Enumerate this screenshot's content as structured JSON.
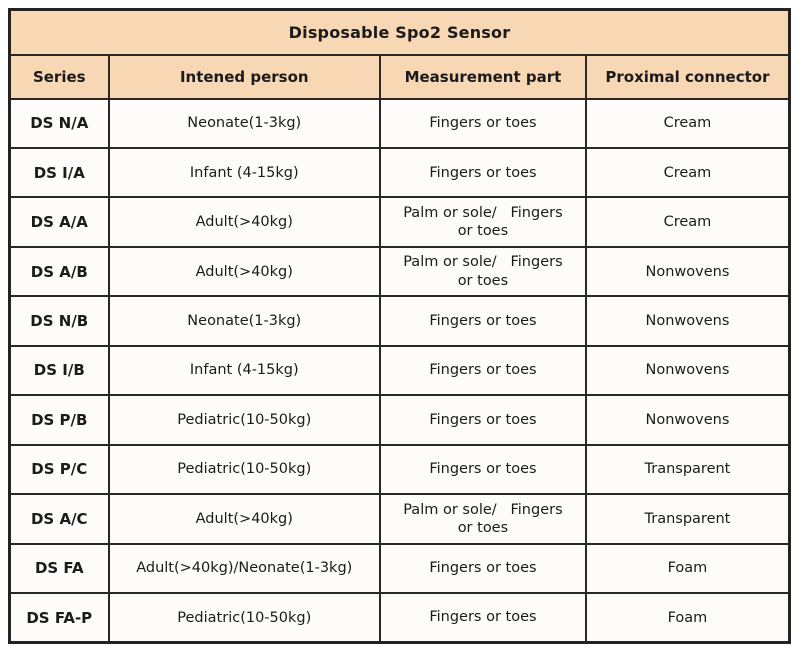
{
  "table": {
    "title": "Disposable Spo2 Sensor",
    "columns": [
      "Series",
      "Intened person",
      "Measurement part",
      "Proximal connector"
    ],
    "rows": [
      {
        "series": "DS N/A",
        "person": "Neonate(1-3kg)",
        "part": "Fingers or toes",
        "connector": "Cream"
      },
      {
        "series": "DS I/A",
        "person": "Infant (4-15kg)",
        "part": "Fingers or toes",
        "connector": "Cream"
      },
      {
        "series": "DS A/A",
        "person": "Adult(>40kg)",
        "part": "Palm or sole/   Fingers\nor toes",
        "connector": "Cream"
      },
      {
        "series": "DS A/B",
        "person": "Adult(>40kg)",
        "part": "Palm or sole/   Fingers\nor toes",
        "connector": "Nonwovens"
      },
      {
        "series": "DS N/B",
        "person": "Neonate(1-3kg)",
        "part": "Fingers or toes",
        "connector": "Nonwovens"
      },
      {
        "series": "DS I/B",
        "person": "Infant (4-15kg)",
        "part": "Fingers or toes",
        "connector": "Nonwovens"
      },
      {
        "series": "DS P/B",
        "person": "Pediatric(10-50kg)",
        "part": "Fingers or toes",
        "connector": "Nonwovens"
      },
      {
        "series": "DS P/C",
        "person": "Pediatric(10-50kg)",
        "part": "Fingers or toes",
        "connector": "Transparent"
      },
      {
        "series": "DS A/C",
        "person": "Adult(>40kg)",
        "part": "Palm or sole/   Fingers\nor toes",
        "connector": "Transparent"
      },
      {
        "series": "DS FA",
        "person": "Adult(>40kg)/Neonate(1-3kg)",
        "part": "Fingers or toes",
        "connector": "Foam"
      },
      {
        "series": "DS FA-P",
        "person": "Pediatric(10-50kg)",
        "part": "Fingers or toes",
        "connector": "Foam"
      }
    ],
    "colors": {
      "header_bg": "#f8d7b4",
      "border": "#2b2724",
      "cell_bg": "#fdfcfa",
      "text": "#1b1b1b"
    }
  }
}
